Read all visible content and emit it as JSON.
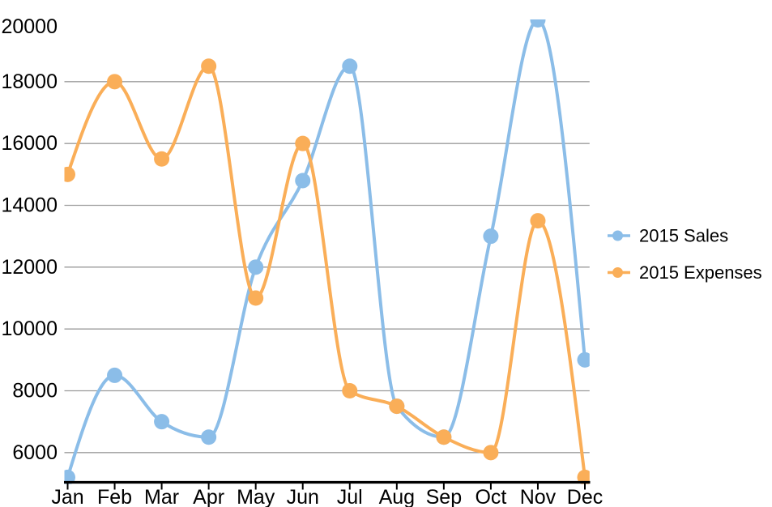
{
  "page": {
    "background": "#FFFFFF"
  },
  "chart_data": {
    "type": "line",
    "curve": "monotone",
    "title": "",
    "xlabel": "",
    "ylabel": "",
    "categories": [
      "Jan",
      "Feb",
      "Mar",
      "Apr",
      "May",
      "Jun",
      "Jul",
      "Aug",
      "Sep",
      "Oct",
      "Nov",
      "Dec"
    ],
    "series": [
      {
        "name": "2015 Sales",
        "color": "#8BBDE8",
        "values": [
          5200,
          8500,
          7000,
          6500,
          12000,
          14800,
          18500,
          7500,
          6500,
          13000,
          20000,
          9000
        ]
      },
      {
        "name": "2015 Expenses",
        "color": "#FAAE58",
        "values": [
          15000,
          18000,
          15500,
          18500,
          11000,
          16000,
          8000,
          7500,
          6500,
          6000,
          13500,
          5200
        ]
      }
    ],
    "ylim": [
      5000,
      20000
    ],
    "y_tick_labels": [
      "6000",
      "8000",
      "10000",
      "12000",
      "14000",
      "16000",
      "18000",
      "20000"
    ],
    "y_gridlines": [
      6000,
      8000,
      10000,
      12000,
      14000,
      16000,
      18000
    ],
    "grid": true,
    "legend_position": "right",
    "axis_color": "#000000",
    "gridline_color": "#9B9B9B",
    "label_color": "#000000"
  }
}
